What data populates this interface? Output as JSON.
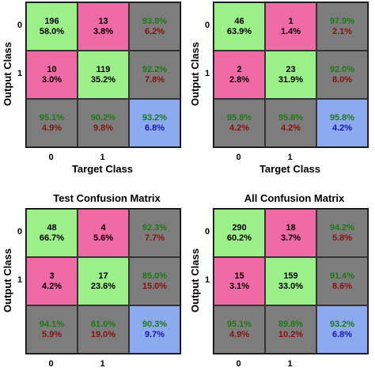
{
  "chart_data": [
    {
      "type": "heatmap",
      "title": "",
      "xlabel": "Target Class",
      "ylabel": "Output Class",
      "classes": [
        "0",
        "1"
      ],
      "cells": [
        [
          {
            "top": "196",
            "bottom": "58.0%",
            "kind": "correct"
          },
          {
            "top": "13",
            "bottom": "3.8%",
            "kind": "wrong"
          },
          {
            "top": "93.8%",
            "bottom": "6.2%",
            "kind": "summary"
          }
        ],
        [
          {
            "top": "10",
            "bottom": "3.0%",
            "kind": "wrong"
          },
          {
            "top": "119",
            "bottom": "35.2%",
            "kind": "correct"
          },
          {
            "top": "92.2%",
            "bottom": "7.8%",
            "kind": "summary"
          }
        ],
        [
          {
            "top": "95.1%",
            "bottom": "4.9%",
            "kind": "summary"
          },
          {
            "top": "90.2%",
            "bottom": "9.8%",
            "kind": "summary"
          },
          {
            "top": "93.2%",
            "bottom": "6.8%",
            "kind": "overall"
          }
        ]
      ]
    },
    {
      "type": "heatmap",
      "title": "",
      "xlabel": "Target Class",
      "ylabel": "Output Class",
      "classes": [
        "0",
        "1"
      ],
      "cells": [
        [
          {
            "top": "46",
            "bottom": "63.9%",
            "kind": "correct"
          },
          {
            "top": "1",
            "bottom": "1.4%",
            "kind": "wrong"
          },
          {
            "top": "97.9%",
            "bottom": "2.1%",
            "kind": "summary"
          }
        ],
        [
          {
            "top": "2",
            "bottom": "2.8%",
            "kind": "wrong"
          },
          {
            "top": "23",
            "bottom": "31.9%",
            "kind": "correct"
          },
          {
            "top": "92.0%",
            "bottom": "8.0%",
            "kind": "summary"
          }
        ],
        [
          {
            "top": "95.8%",
            "bottom": "4.2%",
            "kind": "summary"
          },
          {
            "top": "95.8%",
            "bottom": "4.2%",
            "kind": "summary"
          },
          {
            "top": "95.8%",
            "bottom": "4.2%",
            "kind": "overall"
          }
        ]
      ]
    },
    {
      "type": "heatmap",
      "title": "Test Confusion Matrix",
      "xlabel": "",
      "ylabel": "Output Class",
      "classes": [
        "0",
        "1"
      ],
      "cells": [
        [
          {
            "top": "48",
            "bottom": "66.7%",
            "kind": "correct"
          },
          {
            "top": "4",
            "bottom": "5.6%",
            "kind": "wrong"
          },
          {
            "top": "92.3%",
            "bottom": "7.7%",
            "kind": "summary"
          }
        ],
        [
          {
            "top": "3",
            "bottom": "4.2%",
            "kind": "wrong"
          },
          {
            "top": "17",
            "bottom": "23.6%",
            "kind": "correct"
          },
          {
            "top": "85.0%",
            "bottom": "15.0%",
            "kind": "summary"
          }
        ],
        [
          {
            "top": "94.1%",
            "bottom": "5.9%",
            "kind": "summary"
          },
          {
            "top": "81.0%",
            "bottom": "19.0%",
            "kind": "summary"
          },
          {
            "top": "90.3%",
            "bottom": "9.7%",
            "kind": "overall"
          }
        ]
      ]
    },
    {
      "type": "heatmap",
      "title": "All Confusion Matrix",
      "xlabel": "",
      "ylabel": "Output Class",
      "classes": [
        "0",
        "1"
      ],
      "cells": [
        [
          {
            "top": "290",
            "bottom": "60.2%",
            "kind": "correct"
          },
          {
            "top": "18",
            "bottom": "3.7%",
            "kind": "wrong"
          },
          {
            "top": "94.2%",
            "bottom": "5.8%",
            "kind": "summary"
          }
        ],
        [
          {
            "top": "15",
            "bottom": "3.1%",
            "kind": "wrong"
          },
          {
            "top": "159",
            "bottom": "33.0%",
            "kind": "correct"
          },
          {
            "top": "91.4%",
            "bottom": "8.6%",
            "kind": "summary"
          }
        ],
        [
          {
            "top": "95.1%",
            "bottom": "4.9%",
            "kind": "summary"
          },
          {
            "top": "89.8%",
            "bottom": "10.2%",
            "kind": "summary"
          },
          {
            "top": "93.2%",
            "bottom": "6.8%",
            "kind": "overall"
          }
        ]
      ]
    }
  ],
  "colors": {
    "correct": "#9cf08a",
    "wrong": "#f06aa6",
    "summary": "#7d7d7d",
    "overall": "#8da9f0",
    "text_black": "#000000",
    "text_green": "#1c7a14",
    "text_red": "#8a1010",
    "text_blue": "#1818a8"
  }
}
